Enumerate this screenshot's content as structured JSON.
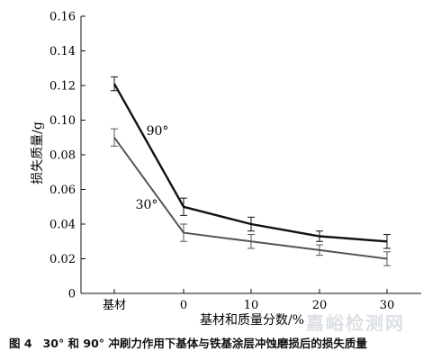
{
  "chart_data": {
    "type": "line",
    "categories": [
      "基材",
      "0",
      "10",
      "20",
      "30"
    ],
    "xlabel": "基材和质量分数/%",
    "ylabel": "损失质量/g",
    "ylim": [
      0,
      0.16
    ],
    "yticks": [
      "0",
      "0.02",
      "0.04",
      "0.06",
      "0.08",
      "0.10",
      "0.12",
      "0.14",
      "0.16"
    ],
    "grid": false,
    "series": [
      {
        "name": "90°",
        "color": "#111111",
        "values": [
          0.121,
          0.05,
          0.04,
          0.033,
          0.03
        ],
        "errors": [
          0.004,
          0.005,
          0.004,
          0.003,
          0.004
        ]
      },
      {
        "name": "30°",
        "color": "#555555",
        "values": [
          0.09,
          0.035,
          0.03,
          0.025,
          0.02
        ],
        "errors": [
          0.005,
          0.005,
          0.004,
          0.003,
          0.004
        ]
      }
    ]
  },
  "caption": {
    "figure_number": "图 4",
    "text": "30° 和 90° 冲刷力作用下基体与铁基涂层冲蚀磨损后的损失质量"
  },
  "watermark": "嘉峪检测网"
}
